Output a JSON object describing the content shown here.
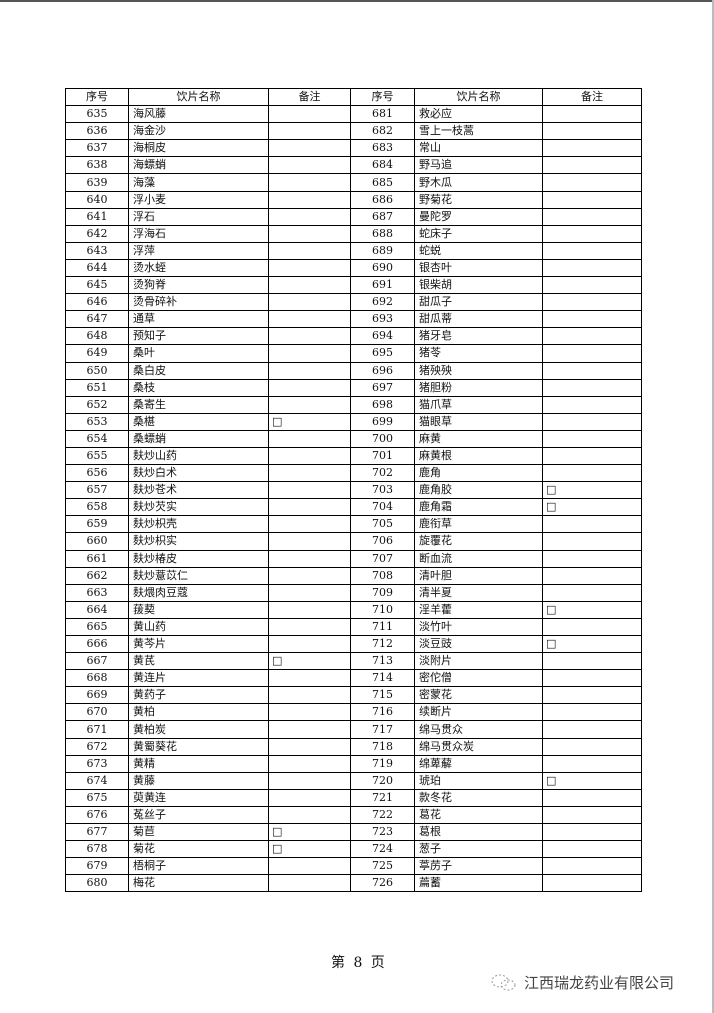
{
  "table": {
    "headers": {
      "seq": "序号",
      "name": "饮片名称",
      "note": "备注"
    },
    "left": [
      [
        "635",
        "海风藤",
        ""
      ],
      [
        "636",
        "海金沙",
        ""
      ],
      [
        "637",
        "海桐皮",
        ""
      ],
      [
        "638",
        "海螵蛸",
        ""
      ],
      [
        "639",
        "海藻",
        ""
      ],
      [
        "640",
        "浮小麦",
        ""
      ],
      [
        "641",
        "浮石",
        ""
      ],
      [
        "642",
        "浮海石",
        ""
      ],
      [
        "643",
        "浮萍",
        ""
      ],
      [
        "644",
        "烫水蛭",
        ""
      ],
      [
        "645",
        "烫狗脊",
        ""
      ],
      [
        "646",
        "烫骨碎补",
        ""
      ],
      [
        "647",
        "通草",
        ""
      ],
      [
        "648",
        "预知子",
        ""
      ],
      [
        "649",
        "桑叶",
        ""
      ],
      [
        "650",
        "桑白皮",
        ""
      ],
      [
        "651",
        "桑枝",
        ""
      ],
      [
        "652",
        "桑寄生",
        ""
      ],
      [
        "653",
        "桑椹",
        "□"
      ],
      [
        "654",
        "桑螵蛸",
        ""
      ],
      [
        "655",
        "麸炒山药",
        ""
      ],
      [
        "656",
        "麸炒白术",
        ""
      ],
      [
        "657",
        "麸炒苍术",
        ""
      ],
      [
        "658",
        "麸炒芡实",
        ""
      ],
      [
        "659",
        "麸炒枳壳",
        ""
      ],
      [
        "660",
        "麸炒枳实",
        ""
      ],
      [
        "661",
        "麸炒椿皮",
        ""
      ],
      [
        "662",
        "麸炒薏苡仁",
        ""
      ],
      [
        "663",
        "麸煨肉豆蔻",
        ""
      ],
      [
        "664",
        "菝葜",
        ""
      ],
      [
        "665",
        "黄山药",
        ""
      ],
      [
        "666",
        "黄芩片",
        ""
      ],
      [
        "667",
        "黄芪",
        "□"
      ],
      [
        "668",
        "黄连片",
        ""
      ],
      [
        "669",
        "黄药子",
        ""
      ],
      [
        "670",
        "黄柏",
        ""
      ],
      [
        "671",
        "黄柏炭",
        ""
      ],
      [
        "672",
        "黄蜀葵花",
        ""
      ],
      [
        "673",
        "黄精",
        ""
      ],
      [
        "674",
        "黄藤",
        ""
      ],
      [
        "675",
        "萸黄连",
        ""
      ],
      [
        "676",
        "菟丝子",
        ""
      ],
      [
        "677",
        "菊苣",
        "□"
      ],
      [
        "678",
        "菊花",
        "□"
      ],
      [
        "679",
        "梧桐子",
        ""
      ],
      [
        "680",
        "梅花",
        ""
      ]
    ],
    "right": [
      [
        "681",
        "救必应",
        ""
      ],
      [
        "682",
        "雪上一枝蒿",
        ""
      ],
      [
        "683",
        "常山",
        ""
      ],
      [
        "684",
        "野马追",
        ""
      ],
      [
        "685",
        "野木瓜",
        ""
      ],
      [
        "686",
        "野菊花",
        ""
      ],
      [
        "687",
        "曼陀罗",
        ""
      ],
      [
        "688",
        "蛇床子",
        ""
      ],
      [
        "689",
        "蛇蜕",
        ""
      ],
      [
        "690",
        "银杏叶",
        ""
      ],
      [
        "691",
        "银柴胡",
        ""
      ],
      [
        "692",
        "甜瓜子",
        ""
      ],
      [
        "693",
        "甜瓜蒂",
        ""
      ],
      [
        "694",
        "猪牙皂",
        ""
      ],
      [
        "695",
        "猪苓",
        ""
      ],
      [
        "696",
        "猪殃殃",
        ""
      ],
      [
        "697",
        "猪胆粉",
        ""
      ],
      [
        "698",
        "猫爪草",
        ""
      ],
      [
        "699",
        "猫眼草",
        ""
      ],
      [
        "700",
        "麻黄",
        ""
      ],
      [
        "701",
        "麻黄根",
        ""
      ],
      [
        "702",
        "鹿角",
        ""
      ],
      [
        "703",
        "鹿角胶",
        "□"
      ],
      [
        "704",
        "鹿角霜",
        "□"
      ],
      [
        "705",
        "鹿衔草",
        ""
      ],
      [
        "706",
        "旋覆花",
        ""
      ],
      [
        "707",
        "断血流",
        ""
      ],
      [
        "708",
        "清叶胆",
        ""
      ],
      [
        "709",
        "清半夏",
        ""
      ],
      [
        "710",
        "淫羊藿",
        "□"
      ],
      [
        "711",
        "淡竹叶",
        ""
      ],
      [
        "712",
        "淡豆豉",
        "□"
      ],
      [
        "713",
        "淡附片",
        ""
      ],
      [
        "714",
        "密佗僧",
        ""
      ],
      [
        "715",
        "密蒙花",
        ""
      ],
      [
        "716",
        "续断片",
        ""
      ],
      [
        "717",
        "绵马贯众",
        ""
      ],
      [
        "718",
        "绵马贯众炭",
        ""
      ],
      [
        "719",
        "绵萆薢",
        ""
      ],
      [
        "720",
        "琥珀",
        "□"
      ],
      [
        "721",
        "款冬花",
        ""
      ],
      [
        "722",
        "葛花",
        ""
      ],
      [
        "723",
        "葛根",
        ""
      ],
      [
        "724",
        "葱子",
        ""
      ],
      [
        "725",
        "葶苈子",
        ""
      ],
      [
        "726",
        "萹蓄",
        ""
      ]
    ]
  },
  "footer": {
    "page": "第 8 页",
    "brand": "江西瑞龙药业有限公司",
    "brand_icon": "wechat-icon"
  }
}
